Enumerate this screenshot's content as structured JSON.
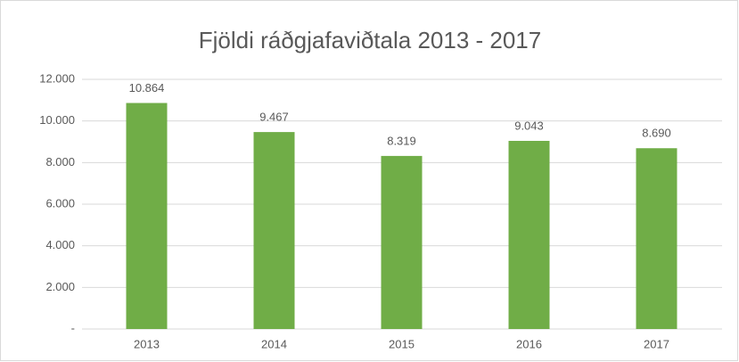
{
  "chart_data": {
    "type": "bar",
    "title": "Fjöldi ráðgjafaviðtala 2013 - 2017",
    "categories": [
      "2013",
      "2014",
      "2015",
      "2016",
      "2017"
    ],
    "values": [
      10864,
      9467,
      8319,
      9043,
      8690
    ],
    "value_labels": [
      "10.864",
      "9.467",
      "8.319",
      "9.043",
      "8.690"
    ],
    "color": "#70ad47",
    "ylim": [
      0,
      12000
    ],
    "yticks": [
      {
        "value": 0,
        "label": "-"
      },
      {
        "value": 2000,
        "label": "2.000"
      },
      {
        "value": 4000,
        "label": "4.000"
      },
      {
        "value": 6000,
        "label": "6.000"
      },
      {
        "value": 8000,
        "label": "8.000"
      },
      {
        "value": 10000,
        "label": "10.000"
      },
      {
        "value": 12000,
        "label": "12.000"
      }
    ],
    "grid": true
  }
}
